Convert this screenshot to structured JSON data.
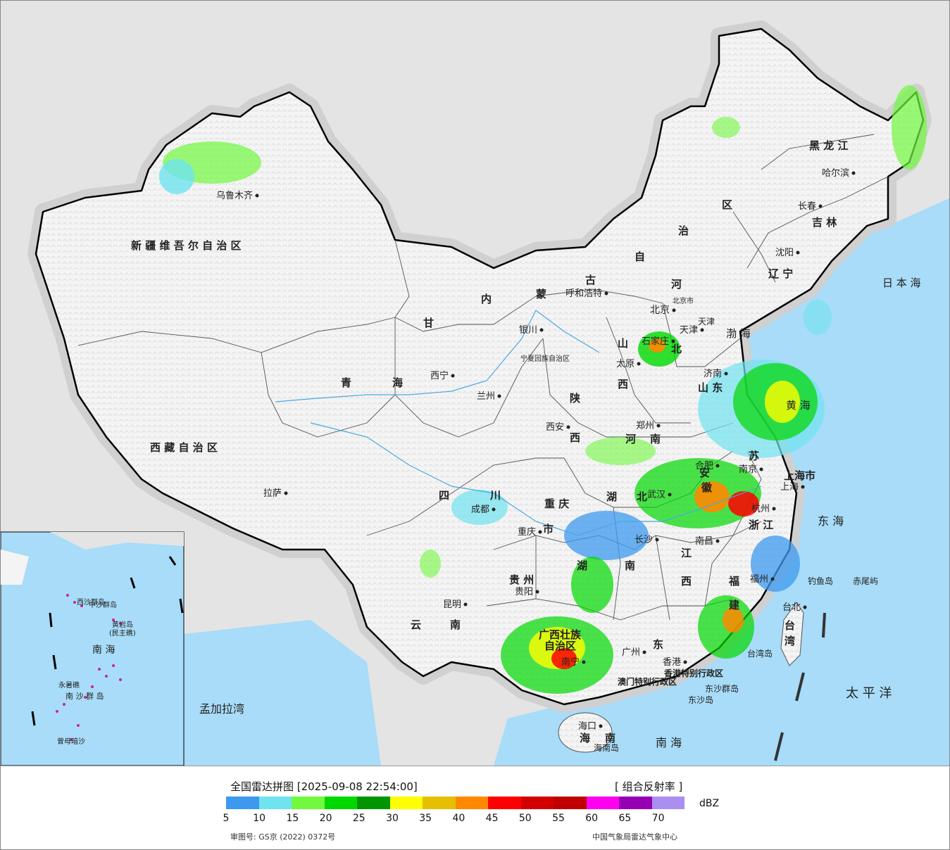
{
  "map": {
    "provinces": [
      {
        "key": "xinjiang",
        "text": "新 疆 维 吾 尔 自 治 区"
      },
      {
        "key": "xizang",
        "text": "西 藏 自 治 区"
      },
      {
        "key": "qinghai_1",
        "text": "青"
      },
      {
        "key": "qinghai_2",
        "text": "海"
      },
      {
        "key": "gansu",
        "text": "甘"
      },
      {
        "key": "neimenggu_nei",
        "text": "内"
      },
      {
        "key": "neimenggu_meng",
        "text": "蒙"
      },
      {
        "key": "neimenggu_gu",
        "text": "古"
      },
      {
        "key": "neimenggu_zi",
        "text": "自"
      },
      {
        "key": "neimenggu_zhi",
        "text": "治"
      },
      {
        "key": "neimenggu_qu",
        "text": "区"
      },
      {
        "key": "heilongjiang",
        "text": "黑 龙 江"
      },
      {
        "key": "jilin",
        "text": "吉 林"
      },
      {
        "key": "liaoning",
        "text": "辽 宁"
      },
      {
        "key": "hebei_he",
        "text": "河"
      },
      {
        "key": "hebei_bei",
        "text": "北"
      },
      {
        "key": "shanxi_1",
        "text": "山"
      },
      {
        "key": "shanxi_2",
        "text": "西"
      },
      {
        "key": "shandong",
        "text": "山 东"
      },
      {
        "key": "henan_1",
        "text": "河"
      },
      {
        "key": "henan_2",
        "text": "南"
      },
      {
        "key": "shaanxi_1",
        "text": "陕"
      },
      {
        "key": "shaanxi_2",
        "text": "西"
      },
      {
        "key": "ningxia",
        "text": "宁夏回族自治区"
      },
      {
        "key": "sichuan_1",
        "text": "四"
      },
      {
        "key": "sichuan_2",
        "text": "川"
      },
      {
        "key": "chongqing_1",
        "text": "重 庆"
      },
      {
        "key": "chongqing_2",
        "text": "市"
      },
      {
        "key": "hubei_1",
        "text": "湖"
      },
      {
        "key": "hubei_2",
        "text": "北"
      },
      {
        "key": "hunan_1",
        "text": "湖"
      },
      {
        "key": "hunan_2",
        "text": "南"
      },
      {
        "key": "anhui_1",
        "text": "安"
      },
      {
        "key": "anhui_2",
        "text": "徽"
      },
      {
        "key": "jiangsu",
        "text": "苏"
      },
      {
        "key": "shanghai",
        "text": "上海市"
      },
      {
        "key": "zhejiang",
        "text": "浙 江"
      },
      {
        "key": "jiangxi_1",
        "text": "江"
      },
      {
        "key": "jiangxi_2",
        "text": "西"
      },
      {
        "key": "fujian_1",
        "text": "福"
      },
      {
        "key": "fujian_2",
        "text": "建"
      },
      {
        "key": "guizhou",
        "text": "贵 州"
      },
      {
        "key": "yunnan_1",
        "text": "云"
      },
      {
        "key": "yunnan_2",
        "text": "南"
      },
      {
        "key": "guangxi_1",
        "text": "广西壮族"
      },
      {
        "key": "guangxi_2",
        "text": "自治区"
      },
      {
        "key": "guangdong",
        "text": "东"
      },
      {
        "key": "hainan_1",
        "text": "海"
      },
      {
        "key": "hainan_2",
        "text": "南"
      },
      {
        "key": "taiwan_1",
        "text": "台"
      },
      {
        "key": "taiwan_2",
        "text": "湾"
      },
      {
        "key": "hk",
        "text": "香港特别行政区"
      },
      {
        "key": "macau",
        "text": "澳门特别行政区"
      },
      {
        "key": "tianjin",
        "text": "天津"
      },
      {
        "key": "beijing_shi",
        "text": "北京市"
      }
    ],
    "cities": [
      {
        "key": "urumqi",
        "text": "乌鲁木齐"
      },
      {
        "key": "lhasa",
        "text": "拉萨"
      },
      {
        "key": "xining",
        "text": "西宁"
      },
      {
        "key": "lanzhou",
        "text": "兰州"
      },
      {
        "key": "yinchuan",
        "text": "银川"
      },
      {
        "key": "hohhot",
        "text": "呼和浩特"
      },
      {
        "key": "beijing",
        "text": "北京"
      },
      {
        "key": "tianjin_c",
        "text": "天津"
      },
      {
        "key": "shijiazhuang",
        "text": "石家庄"
      },
      {
        "key": "taiyuan",
        "text": "太原"
      },
      {
        "key": "jinan",
        "text": "济南"
      },
      {
        "key": "zhengzhou",
        "text": "郑州"
      },
      {
        "key": "xian",
        "text": "西安"
      },
      {
        "key": "chengdu",
        "text": "成都"
      },
      {
        "key": "chongqing",
        "text": "重庆"
      },
      {
        "key": "wuhan",
        "text": "武汉"
      },
      {
        "key": "hefei",
        "text": "合肥"
      },
      {
        "key": "nanjing",
        "text": "南京"
      },
      {
        "key": "shanghai_c",
        "text": "上海"
      },
      {
        "key": "hangzhou",
        "text": "杭州"
      },
      {
        "key": "nanchang",
        "text": "南昌"
      },
      {
        "key": "changsha",
        "text": "长沙"
      },
      {
        "key": "fuzhou",
        "text": "福州"
      },
      {
        "key": "guiyang",
        "text": "贵阳"
      },
      {
        "key": "kunming",
        "text": "昆明"
      },
      {
        "key": "nanning",
        "text": "南宁"
      },
      {
        "key": "guangzhou",
        "text": "广州"
      },
      {
        "key": "hongkong",
        "text": "香港"
      },
      {
        "key": "haikou",
        "text": "海口"
      },
      {
        "key": "taibei",
        "text": "台北"
      },
      {
        "key": "shenyang",
        "text": "沈阳"
      },
      {
        "key": "changchun",
        "text": "长春"
      },
      {
        "key": "harbin",
        "text": "哈尔滨"
      }
    ],
    "seas": [
      {
        "key": "japan_sea",
        "text": "日 本 海"
      },
      {
        "key": "bohai",
        "text": "渤 海"
      },
      {
        "key": "yellow_sea",
        "text": "黄 海"
      },
      {
        "key": "east_sea",
        "text": "东 海"
      },
      {
        "key": "pacific",
        "text": "太 平 洋"
      },
      {
        "key": "south_sea",
        "text": "南 海"
      },
      {
        "key": "bengal",
        "text": "孟加拉湾"
      }
    ],
    "islands": [
      {
        "key": "diaoyu",
        "text": "钓鱼岛"
      },
      {
        "key": "chiwei",
        "text": "赤尾屿"
      },
      {
        "key": "taiwan_isl",
        "text": "台湾岛"
      },
      {
        "key": "dongsha_q",
        "text": "东沙群岛"
      },
      {
        "key": "dongsha_d",
        "text": "东沙岛"
      },
      {
        "key": "hainan_d",
        "text": "海南岛"
      }
    ],
    "inset": {
      "south_sea": "南 海",
      "xisha": "西沙群岛",
      "zhongsha": "中沙群岛",
      "huangyan": "黄岩岛",
      "minzhu": "(民主礁)",
      "nansha": "南 沙 群 岛",
      "zengmu": "曾母暗沙",
      "yongshu": "永暑礁"
    }
  },
  "legend": {
    "title": "全国雷达拼图 [2025-09-08 22:54:00]",
    "product": "[ 组合反射率 ]",
    "unit": "dBZ",
    "ticks": [
      "5",
      "10",
      "15",
      "20",
      "25",
      "30",
      "35",
      "40",
      "45",
      "50",
      "55",
      "60",
      "65",
      "70"
    ],
    "colors": [
      "#3d99ef",
      "#6fe3ef",
      "#71f83f",
      "#00d900",
      "#009400",
      "#ffff00",
      "#e5bf00",
      "#ff8800",
      "#ff0000",
      "#d30000",
      "#c00000",
      "#ff00f0",
      "#9600b4",
      "#ab8ff0"
    ],
    "approval": "审图号: GS京 (2022) 0372号",
    "source": "中国气象局雷达气象中心"
  }
}
